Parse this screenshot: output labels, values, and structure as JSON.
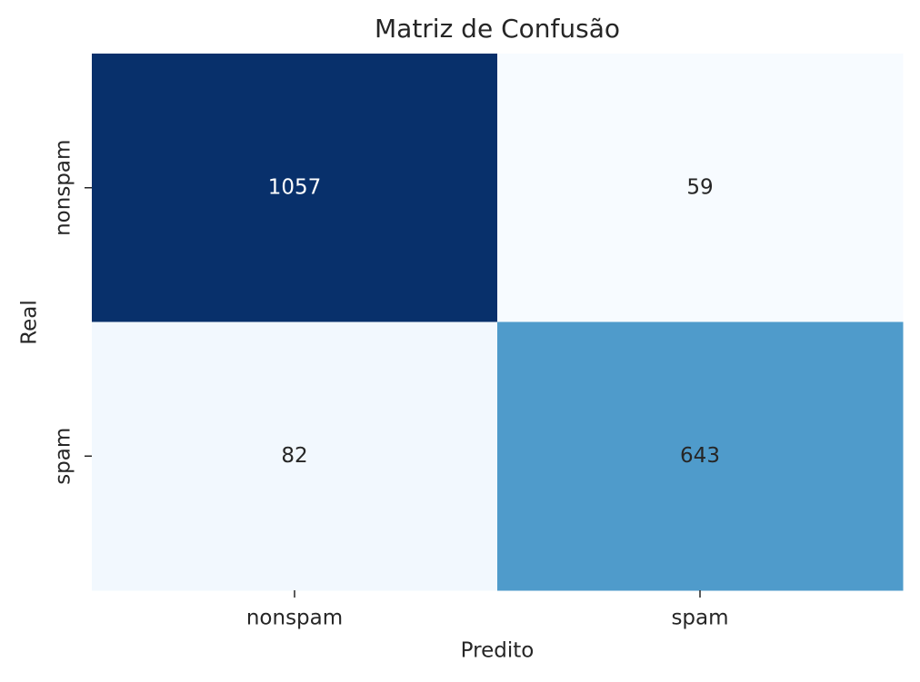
{
  "chart_data": {
    "type": "heatmap",
    "title": "Matriz de Confusão",
    "xlabel": "Predito",
    "ylabel": "Real",
    "x_categories": [
      "nonspam",
      "spam"
    ],
    "y_categories": [
      "nonspam",
      "spam"
    ],
    "values": [
      [
        1057,
        59
      ],
      [
        82,
        643
      ]
    ],
    "colormap": "Blues",
    "colorbar": false
  }
}
